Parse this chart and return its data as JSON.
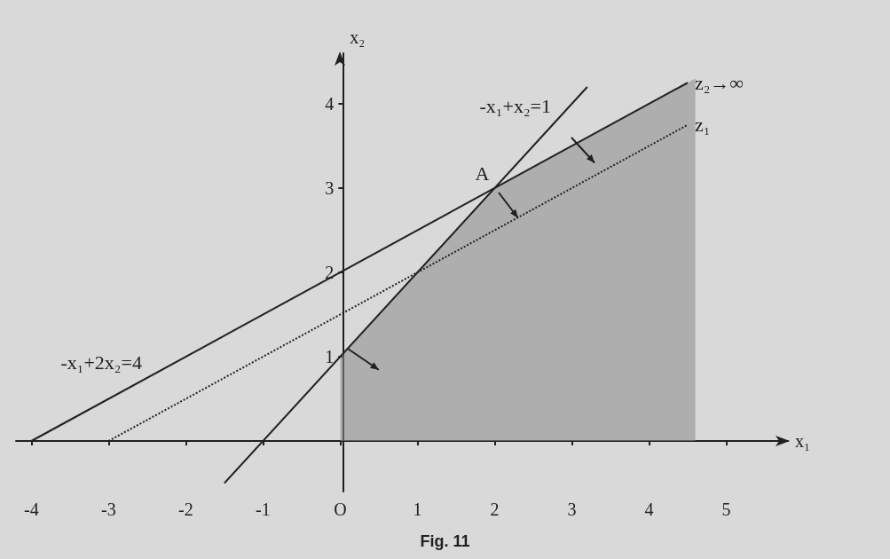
{
  "chart_data": {
    "type": "line",
    "title": "Fig. 11",
    "xlabel": "x₁",
    "ylabel": "x₂",
    "xlim": [
      -4.2,
      5.8
    ],
    "ylim": [
      -0.6,
      4.6
    ],
    "xticks": [
      -4,
      -3,
      -2,
      -1,
      {
        "value": 0,
        "label": "O"
      },
      1,
      2,
      3,
      4,
      5
    ],
    "yticks": [
      1,
      2,
      3,
      4
    ],
    "grid": false,
    "marker": "none",
    "series": [
      {
        "type": "area",
        "color": "#8a8a8a",
        "x": [
          0,
          2,
          4.6
        ],
        "values": [
          1,
          3,
          4.3
        ]
      },
      {
        "color": "#202020",
        "x": [
          -4,
          4.5
        ],
        "values": [
          0,
          4.25
        ],
        "line_style": "solid"
      },
      {
        "color": "#202020",
        "x": [
          -1.5,
          3.2
        ],
        "values": [
          -0.5,
          4.2
        ],
        "line_style": "solid"
      },
      {
        "color": "#202020",
        "x": [
          -3,
          4.5
        ],
        "values": [
          0,
          3.75
        ],
        "line_style": "dotted"
      }
    ],
    "annotations": [
      {
        "text": "A",
        "x": 2,
        "y": 3
      },
      {
        "text": "-x₁+x₂=1",
        "x": 2.8,
        "y": 3.8
      },
      {
        "text": "-x₁+2x₂=4",
        "x": -2.5,
        "y": 0.75
      },
      {
        "text": "z₁",
        "x": 4.5,
        "y": 3.75
      },
      {
        "text": "z₂→∞",
        "x": 4.5,
        "y": 4.25
      }
    ]
  }
}
